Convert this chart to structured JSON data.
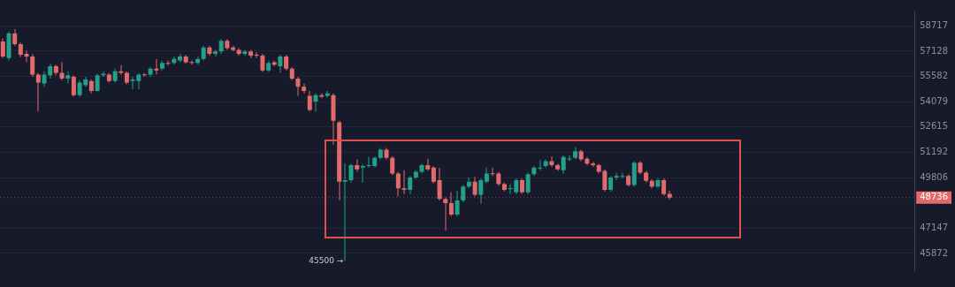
{
  "chart_data": {
    "type": "candlestick",
    "categories": [
      null,
      null,
      null,
      null,
      null,
      null,
      null,
      null,
      null,
      null,
      null,
      null,
      null,
      null,
      null,
      null,
      null,
      null,
      null,
      null,
      null,
      null,
      null,
      null,
      null,
      null,
      null,
      null,
      null,
      null,
      null,
      null,
      null,
      null,
      null,
      null,
      null,
      null,
      null,
      null,
      null,
      null,
      null,
      null,
      null,
      null,
      null,
      null,
      null,
      null,
      null,
      null,
      null,
      null,
      null,
      null,
      null,
      null,
      null,
      null,
      null,
      null,
      null,
      null,
      null,
      null,
      null,
      null,
      null,
      null,
      null,
      null,
      null,
      null,
      null,
      null,
      null,
      null,
      null,
      null,
      null,
      null,
      null,
      null,
      null,
      null,
      null,
      null,
      null,
      null,
      null,
      null,
      null,
      null,
      null,
      null,
      null,
      null,
      null,
      null,
      null,
      null,
      null,
      null,
      null,
      null,
      null,
      null,
      null,
      null,
      null,
      null,
      null,
      null,
      null,
      null,
      null,
      null,
      null,
      null,
      null,
      null,
      null,
      null,
      null,
      null,
      null,
      null,
      null,
      null,
      null,
      null,
      null,
      null,
      null,
      null,
      null,
      null,
      null,
      null,
      null,
      null,
      null,
      null,
      null,
      null,
      null,
      null,
      null,
      null,
      null,
      null,
      null,
      null,
      null
    ],
    "ohlc": [
      [
        57725,
        57930,
        56700,
        56805
      ],
      [
        56700,
        58350,
        56550,
        58245
      ],
      [
        58245,
        58510,
        57465,
        57570
      ],
      [
        57570,
        57670,
        56755,
        56905
      ],
      [
        56960,
        57160,
        56450,
        56805
      ],
      [
        56805,
        56960,
        55555,
        55700
      ],
      [
        55700,
        55800,
        53505,
        55210
      ],
      [
        55160,
        55900,
        54960,
        55700
      ],
      [
        55650,
        56350,
        55455,
        56200
      ],
      [
        56200,
        56300,
        55650,
        55800
      ],
      [
        55800,
        56450,
        55355,
        55455
      ],
      [
        55455,
        55900,
        55160,
        55650
      ],
      [
        55555,
        55650,
        54375,
        54470
      ],
      [
        54470,
        55355,
        54375,
        55210
      ],
      [
        55060,
        55555,
        54960,
        55405
      ],
      [
        55305,
        55405,
        54570,
        54715
      ],
      [
        54715,
        55750,
        54670,
        55650
      ],
      [
        55650,
        55900,
        55555,
        55750
      ],
      [
        55700,
        55800,
        55210,
        55305
      ],
      [
        55305,
        56050,
        55210,
        55900
      ],
      [
        55900,
        56250,
        55700,
        55800
      ],
      [
        55800,
        55900,
        55110,
        55210
      ],
      [
        55305,
        55555,
        54815,
        55405
      ],
      [
        55305,
        55800,
        54815,
        55700
      ],
      [
        55700,
        55800,
        55555,
        55650
      ],
      [
        55700,
        56150,
        55555,
        56050
      ],
      [
        56050,
        56650,
        55700,
        55950
      ],
      [
        56050,
        56550,
        55950,
        56400
      ],
      [
        56400,
        56550,
        56250,
        56350
      ],
      [
        56400,
        56805,
        56300,
        56650
      ],
      [
        56550,
        56960,
        56450,
        56805
      ],
      [
        56805,
        56905,
        56350,
        56450
      ],
      [
        56450,
        56550,
        56300,
        56400
      ],
      [
        56400,
        56805,
        56300,
        56650
      ],
      [
        56650,
        57465,
        56550,
        57365
      ],
      [
        57365,
        57465,
        56855,
        56960
      ],
      [
        56960,
        57210,
        56805,
        57110
      ],
      [
        57110,
        57880,
        56960,
        57775
      ],
      [
        57775,
        57880,
        57210,
        57315
      ],
      [
        57365,
        57465,
        57110,
        57210
      ],
      [
        57210,
        57315,
        56855,
        56960
      ],
      [
        56960,
        57210,
        56855,
        57110
      ],
      [
        57110,
        57210,
        56700,
        56855
      ],
      [
        56905,
        57060,
        56700,
        56855
      ],
      [
        56855,
        56960,
        55850,
        55950
      ],
      [
        55950,
        56550,
        55850,
        56400
      ],
      [
        56450,
        56550,
        56200,
        56300
      ],
      [
        56200,
        56905,
        55800,
        56805
      ],
      [
        56805,
        56905,
        55950,
        56050
      ],
      [
        56050,
        56150,
        55355,
        55455
      ],
      [
        55455,
        55555,
        54425,
        54960
      ],
      [
        54960,
        55160,
        54570,
        54715
      ],
      [
        54425,
        54715,
        53505,
        53600
      ],
      [
        54085,
        54570,
        53505,
        54470
      ],
      [
        54470,
        54570,
        54280,
        54375
      ],
      [
        54425,
        54715,
        54325,
        54570
      ],
      [
        54470,
        54570,
        51620,
        52975
      ],
      [
        52880,
        52975,
        48580,
        49585
      ],
      [
        49585,
        50570,
        45500,
        49670
      ],
      [
        49670,
        50570,
        49540,
        50480
      ],
      [
        50480,
        50795,
        50120,
        50255
      ],
      [
        50345,
        50525,
        49540,
        50435
      ],
      [
        50435,
        50930,
        50345,
        50480
      ],
      [
        50435,
        50975,
        50345,
        50885
      ],
      [
        50885,
        51435,
        50795,
        51340
      ],
      [
        51340,
        51435,
        50795,
        50885
      ],
      [
        50885,
        50975,
        49940,
        50030
      ],
      [
        50030,
        50120,
        48795,
        49235
      ],
      [
        49235,
        50210,
        48925,
        49145
      ],
      [
        49145,
        49895,
        48925,
        49805
      ],
      [
        49805,
        50210,
        49715,
        50120
      ],
      [
        50120,
        50570,
        50030,
        50480
      ],
      [
        50480,
        50840,
        50165,
        50255
      ],
      [
        50345,
        50435,
        49500,
        49585
      ],
      [
        49670,
        50345,
        48580,
        48665
      ],
      [
        48665,
        48750,
        47005,
        48450
      ],
      [
        48450,
        49015,
        47765,
        47850
      ],
      [
        47850,
        49100,
        47765,
        48580
      ],
      [
        48580,
        49410,
        48490,
        49320
      ],
      [
        49320,
        49805,
        49235,
        49585
      ],
      [
        49585,
        49850,
        48795,
        48885
      ],
      [
        48885,
        49760,
        48405,
        49670
      ],
      [
        49585,
        50345,
        49500,
        50030
      ],
      [
        50030,
        50345,
        49895,
        49985
      ],
      [
        50030,
        50120,
        49365,
        49455
      ],
      [
        49455,
        49540,
        49060,
        49145
      ],
      [
        49190,
        49455,
        48925,
        49235
      ],
      [
        49015,
        49760,
        48925,
        49670
      ],
      [
        49670,
        49760,
        48925,
        49015
      ],
      [
        49015,
        50075,
        48925,
        49985
      ],
      [
        49985,
        50435,
        49895,
        50345
      ],
      [
        50300,
        50750,
        50210,
        50345
      ],
      [
        50435,
        50795,
        50345,
        50705
      ],
      [
        50705,
        50975,
        50390,
        50480
      ],
      [
        50480,
        50570,
        50165,
        50255
      ],
      [
        50210,
        51020,
        50030,
        50930
      ],
      [
        50795,
        51020,
        50705,
        50840
      ],
      [
        50885,
        51480,
        50795,
        51250
      ],
      [
        51250,
        51340,
        50705,
        50795
      ],
      [
        50840,
        50930,
        50480,
        50570
      ],
      [
        50570,
        50660,
        50390,
        50480
      ],
      [
        50480,
        50570,
        50030,
        50120
      ],
      [
        50165,
        50255,
        49060,
        49145
      ],
      [
        49145,
        49895,
        49060,
        49805
      ],
      [
        49805,
        50075,
        49670,
        49895
      ],
      [
        49850,
        50075,
        49760,
        49895
      ],
      [
        49895,
        49985,
        49320,
        49410
      ],
      [
        49410,
        50705,
        49320,
        50615
      ],
      [
        50615,
        50705,
        49985,
        50075
      ],
      [
        50075,
        50165,
        49540,
        49630
      ],
      [
        49630,
        49715,
        49235,
        49320
      ],
      [
        49320,
        49760,
        49235,
        49670
      ],
      [
        49670,
        49760,
        48840,
        48925
      ],
      [
        48940,
        49100,
        48620,
        48736
      ],
      null,
      null,
      null,
      null,
      null,
      null,
      null,
      null,
      null,
      null,
      null,
      null,
      null,
      null,
      null,
      null,
      null,
      null,
      null,
      null,
      null,
      null,
      null,
      null,
      null,
      null,
      null,
      null,
      null,
      null,
      null,
      null,
      null,
      null,
      null,
      null,
      null,
      null,
      null,
      null,
      null
    ],
    "colors": [
      "#e36a6a",
      "#22a08a",
      "#e36a6a",
      "#e36a6a",
      "#e36a6a",
      "#e36a6a",
      "#e36a6a",
      "#22a08a",
      "#22a08a",
      "#e36a6a",
      "#e36a6a",
      "#22a08a",
      "#e36a6a",
      "#22a08a",
      "#22a08a",
      "#e36a6a",
      "#22a08a",
      "#22a08a",
      "#e36a6a",
      "#22a08a",
      "#e36a6a",
      "#e36a6a",
      "#22a08a",
      "#22a08a",
      "#e36a6a",
      "#22a08a",
      "#e36a6a",
      "#22a08a",
      "#e36a6a",
      "#22a08a",
      "#22a08a",
      "#e36a6a",
      "#e36a6a",
      "#22a08a",
      "#22a08a",
      "#e36a6a",
      "#22a08a",
      "#22a08a",
      "#e36a6a",
      "#e36a6a",
      "#e36a6a",
      "#22a08a",
      "#e36a6a",
      "#e36a6a",
      "#e36a6a",
      "#22a08a",
      "#e36a6a",
      "#22a08a",
      "#e36a6a",
      "#e36a6a",
      "#e36a6a",
      "#e36a6a",
      "#e36a6a",
      "#22a08a",
      "#e36a6a",
      "#22a08a",
      "#e36a6a",
      "#e36a6a",
      "#22a08a",
      "#22a08a",
      "#e36a6a",
      "#22a08a",
      "#22a08a",
      "#22a08a",
      "#22a08a",
      "#e36a6a",
      "#e36a6a",
      "#e36a6a",
      "#e36a6a",
      "#22a08a",
      "#22a08a",
      "#22a08a",
      "#e36a6a",
      "#e36a6a",
      "#e36a6a",
      "#e36a6a",
      "#e36a6a",
      "#22a08a",
      "#22a08a",
      "#22a08a",
      "#e36a6a",
      "#22a08a",
      "#22a08a",
      "#e36a6a",
      "#e36a6a",
      "#e36a6a",
      "#22a08a",
      "#22a08a",
      "#e36a6a",
      "#22a08a",
      "#22a08a",
      "#22a08a",
      "#22a08a",
      "#e36a6a",
      "#e36a6a",
      "#22a08a",
      "#22a08a",
      "#22a08a",
      "#e36a6a",
      "#e36a6a",
      "#e36a6a",
      "#e36a6a",
      "#e36a6a",
      "#22a08a",
      "#22a08a",
      "#22a08a",
      "#e36a6a",
      "#22a08a",
      "#e36a6a",
      "#e36a6a",
      "#e36a6a",
      "#22a08a",
      "#e36a6a",
      "#e36a6a",
      null,
      null,
      null,
      null,
      null,
      null,
      null,
      null,
      null,
      null,
      null,
      null,
      null,
      null,
      null,
      null,
      null,
      null,
      null,
      null,
      null,
      null,
      null,
      null,
      null,
      null,
      null,
      null,
      null,
      null,
      null,
      null,
      null,
      null,
      null,
      null,
      null,
      null,
      null,
      null,
      null
    ],
    "log": "y",
    "ylim": [
      45000,
      59700
    ],
    "yticks": [
      45872,
      47147,
      49806,
      51192,
      52615,
      54079,
      55582,
      57128,
      58717
    ],
    "grid": "y",
    "ref_lines": [
      {
        "axis": "y",
        "value": 48736,
        "label": "48736",
        "color": "#e36a6a",
        "line_style": "dotted"
      }
    ],
    "annotations": [
      "45500 →"
    ]
  }
}
